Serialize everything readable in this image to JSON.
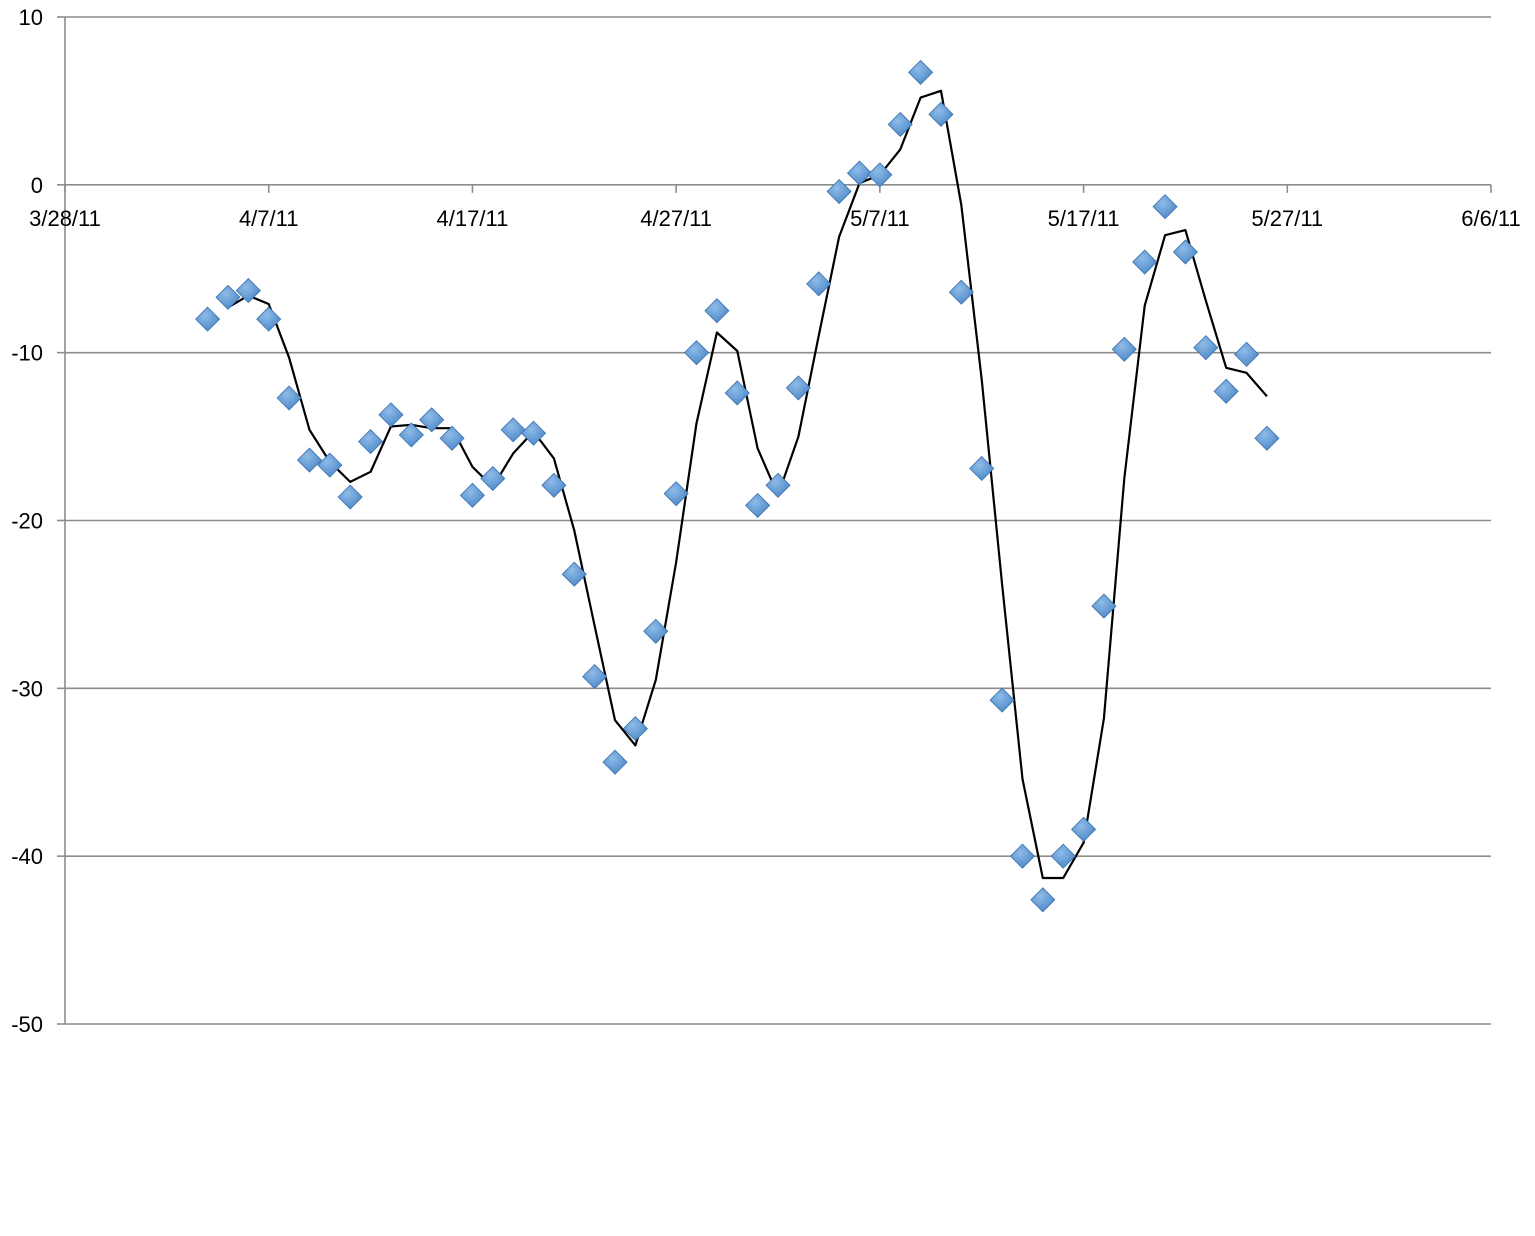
{
  "chart_data": {
    "type": "scatter",
    "title": "",
    "xlabel": "",
    "ylabel": "",
    "xlim": [
      "2011-03-28",
      "2011-06-06"
    ],
    "ylim": [
      -50,
      10
    ],
    "grid": true,
    "legend": "none",
    "x_ticks": [
      {
        "date": "2011-03-28",
        "label": "3/28/11"
      },
      {
        "date": "2011-04-07",
        "label": "4/7/11"
      },
      {
        "date": "2011-04-17",
        "label": "4/17/11"
      },
      {
        "date": "2011-04-27",
        "label": "4/27/11"
      },
      {
        "date": "2011-05-07",
        "label": "5/7/11"
      },
      {
        "date": "2011-05-17",
        "label": "5/17/11"
      },
      {
        "date": "2011-05-27",
        "label": "5/27/11"
      },
      {
        "date": "2011-06-06",
        "label": "6/6/11"
      }
    ],
    "y_ticks": [
      {
        "value": 10,
        "label": "10"
      },
      {
        "value": 0,
        "label": "0"
      },
      {
        "value": -10,
        "label": "-10"
      },
      {
        "value": -20,
        "label": "-20"
      },
      {
        "value": -30,
        "label": "-30"
      },
      {
        "value": -40,
        "label": "-40"
      },
      {
        "value": -50,
        "label": "-50"
      }
    ],
    "series": [
      {
        "type": "scatter",
        "color": "#4a87c7",
        "marker": "diamond",
        "points": [
          {
            "x": "2011-04-04",
            "y": -8.0
          },
          {
            "x": "2011-04-05",
            "y": -6.7
          },
          {
            "x": "2011-04-06",
            "y": -6.3
          },
          {
            "x": "2011-04-07",
            "y": -8.0
          },
          {
            "x": "2011-04-08",
            "y": -12.7
          },
          {
            "x": "2011-04-09",
            "y": -16.4
          },
          {
            "x": "2011-04-10",
            "y": -16.7
          },
          {
            "x": "2011-04-11",
            "y": -18.6
          },
          {
            "x": "2011-04-12",
            "y": -15.3
          },
          {
            "x": "2011-04-13",
            "y": -13.7
          },
          {
            "x": "2011-04-14",
            "y": -14.9
          },
          {
            "x": "2011-04-15",
            "y": -14.0
          },
          {
            "x": "2011-04-16",
            "y": -15.1
          },
          {
            "x": "2011-04-17",
            "y": -18.5
          },
          {
            "x": "2011-04-18",
            "y": -17.5
          },
          {
            "x": "2011-04-19",
            "y": -14.6
          },
          {
            "x": "2011-04-20",
            "y": -14.8
          },
          {
            "x": "2011-04-21",
            "y": -17.9
          },
          {
            "x": "2011-04-22",
            "y": -23.2
          },
          {
            "x": "2011-04-23",
            "y": -29.3
          },
          {
            "x": "2011-04-24",
            "y": -34.4
          },
          {
            "x": "2011-04-25",
            "y": -32.4
          },
          {
            "x": "2011-04-26",
            "y": -26.6
          },
          {
            "x": "2011-04-27",
            "y": -18.4
          },
          {
            "x": "2011-04-28",
            "y": -10.0
          },
          {
            "x": "2011-04-29",
            "y": -7.5
          },
          {
            "x": "2011-04-30",
            "y": -12.4
          },
          {
            "x": "2011-05-01",
            "y": -19.1
          },
          {
            "x": "2011-05-02",
            "y": -17.9
          },
          {
            "x": "2011-05-03",
            "y": -12.1
          },
          {
            "x": "2011-05-04",
            "y": -5.9
          },
          {
            "x": "2011-05-05",
            "y": -0.4
          },
          {
            "x": "2011-05-06",
            "y": 0.7
          },
          {
            "x": "2011-05-07",
            "y": 0.6
          },
          {
            "x": "2011-05-08",
            "y": 3.6
          },
          {
            "x": "2011-05-09",
            "y": 6.7
          },
          {
            "x": "2011-05-10",
            "y": 4.2
          },
          {
            "x": "2011-05-11",
            "y": -6.4
          },
          {
            "x": "2011-05-12",
            "y": -16.9
          },
          {
            "x": "2011-05-13",
            "y": -30.7
          },
          {
            "x": "2011-05-14",
            "y": -40.0
          },
          {
            "x": "2011-05-15",
            "y": -42.6
          },
          {
            "x": "2011-05-16",
            "y": -40.0
          },
          {
            "x": "2011-05-17",
            "y": -38.4
          },
          {
            "x": "2011-05-18",
            "y": -25.1
          },
          {
            "x": "2011-05-19",
            "y": -9.8
          },
          {
            "x": "2011-05-20",
            "y": -4.6
          },
          {
            "x": "2011-05-21",
            "y": -1.3
          },
          {
            "x": "2011-05-22",
            "y": -4.0
          },
          {
            "x": "2011-05-23",
            "y": -9.7
          },
          {
            "x": "2011-05-24",
            "y": -12.3
          },
          {
            "x": "2011-05-25",
            "y": -10.1
          },
          {
            "x": "2011-05-26",
            "y": -15.1
          }
        ]
      },
      {
        "type": "line",
        "color": "#000000",
        "points": [
          {
            "x": "2011-04-05",
            "y": -7.3
          },
          {
            "x": "2011-04-06",
            "y": -6.6
          },
          {
            "x": "2011-04-07",
            "y": -7.1
          },
          {
            "x": "2011-04-08",
            "y": -10.3
          },
          {
            "x": "2011-04-09",
            "y": -14.6
          },
          {
            "x": "2011-04-10",
            "y": -16.5
          },
          {
            "x": "2011-04-11",
            "y": -17.7
          },
          {
            "x": "2011-04-12",
            "y": -17.1
          },
          {
            "x": "2011-04-13",
            "y": -14.4
          },
          {
            "x": "2011-04-14",
            "y": -14.3
          },
          {
            "x": "2011-04-15",
            "y": -14.5
          },
          {
            "x": "2011-04-16",
            "y": -14.5
          },
          {
            "x": "2011-04-17",
            "y": -16.8
          },
          {
            "x": "2011-04-18",
            "y": -18.0
          },
          {
            "x": "2011-04-19",
            "y": -16.0
          },
          {
            "x": "2011-04-20",
            "y": -14.7
          },
          {
            "x": "2011-04-21",
            "y": -16.3
          },
          {
            "x": "2011-04-22",
            "y": -20.6
          },
          {
            "x": "2011-04-23",
            "y": -26.3
          },
          {
            "x": "2011-04-24",
            "y": -31.9
          },
          {
            "x": "2011-04-25",
            "y": -33.4
          },
          {
            "x": "2011-04-26",
            "y": -29.5
          },
          {
            "x": "2011-04-27",
            "y": -22.5
          },
          {
            "x": "2011-04-28",
            "y": -14.2
          },
          {
            "x": "2011-04-29",
            "y": -8.8
          },
          {
            "x": "2011-04-30",
            "y": -9.9
          },
          {
            "x": "2011-05-01",
            "y": -15.7
          },
          {
            "x": "2011-05-02",
            "y": -18.5
          },
          {
            "x": "2011-05-03",
            "y": -15.0
          },
          {
            "x": "2011-05-04",
            "y": -9.0
          },
          {
            "x": "2011-05-05",
            "y": -3.1
          },
          {
            "x": "2011-05-06",
            "y": 0.1
          },
          {
            "x": "2011-05-07",
            "y": 0.6
          },
          {
            "x": "2011-05-08",
            "y": 2.1
          },
          {
            "x": "2011-05-09",
            "y": 5.2
          },
          {
            "x": "2011-05-10",
            "y": 5.6
          },
          {
            "x": "2011-05-11",
            "y": -1.2
          },
          {
            "x": "2011-05-12",
            "y": -11.6
          },
          {
            "x": "2011-05-13",
            "y": -23.8
          },
          {
            "x": "2011-05-14",
            "y": -35.4
          },
          {
            "x": "2011-05-15",
            "y": -41.3
          },
          {
            "x": "2011-05-16",
            "y": -41.3
          },
          {
            "x": "2011-05-17",
            "y": -39.2
          },
          {
            "x": "2011-05-18",
            "y": -31.8
          },
          {
            "x": "2011-05-19",
            "y": -17.5
          },
          {
            "x": "2011-05-20",
            "y": -7.2
          },
          {
            "x": "2011-05-21",
            "y": -3.0
          },
          {
            "x": "2011-05-22",
            "y": -2.7
          },
          {
            "x": "2011-05-23",
            "y": -6.9
          },
          {
            "x": "2011-05-24",
            "y": -10.9
          },
          {
            "x": "2011-05-25",
            "y": -11.2
          },
          {
            "x": "2011-05-26",
            "y": -12.6
          }
        ]
      }
    ]
  }
}
